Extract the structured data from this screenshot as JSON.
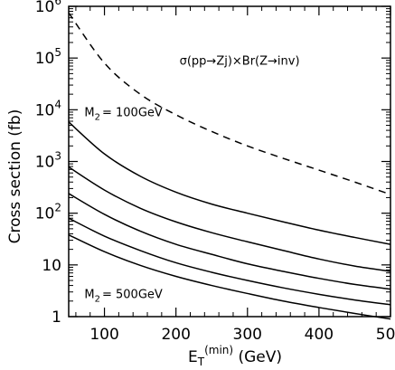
{
  "chart_data": {
    "type": "line",
    "title": "",
    "xlabel": {
      "main": "E",
      "sub": "T",
      "sup": "(min)",
      "unit": " (GeV)"
    },
    "ylabel": "Cross section (fb)",
    "xlim": [
      50,
      500
    ],
    "ylim": [
      1,
      1000000
    ],
    "yscale": "log",
    "grid": false,
    "legend": "none",
    "x_ticks": [
      100,
      200,
      300,
      400,
      500
    ],
    "x_tick_labels": [
      "100",
      "200",
      "300",
      "400",
      "500"
    ],
    "y_ticks": [
      1,
      10,
      100,
      1000,
      10000,
      100000,
      1000000
    ],
    "y_tick_labels": [
      {
        "text": "1"
      },
      {
        "text": "10"
      },
      {
        "base": "10",
        "exp": "2"
      },
      {
        "base": "10",
        "exp": "3"
      },
      {
        "base": "10",
        "exp": "4"
      },
      {
        "base": "10",
        "exp": "5"
      },
      {
        "base": "10",
        "exp": "6"
      }
    ],
    "series": [
      {
        "style": "dashed",
        "x": [
          50,
          100,
          150,
          200,
          250,
          300,
          350,
          400,
          450,
          500
        ],
        "values": [
          750000,
          80000,
          20000,
          8000,
          3800,
          2000,
          1150,
          680,
          400,
          230
        ]
      },
      {
        "style": "solid",
        "x": [
          50,
          100,
          150,
          200,
          250,
          300,
          350,
          400,
          450,
          500
        ],
        "values": [
          5800,
          1400,
          520,
          255,
          150,
          100,
          68,
          47,
          34,
          25
        ]
      },
      {
        "style": "solid",
        "x": [
          50,
          100,
          150,
          200,
          250,
          300,
          350,
          400,
          450,
          500
        ],
        "values": [
          780,
          280,
          125,
          68,
          42,
          28,
          19,
          13,
          9.5,
          7.5
        ]
      },
      {
        "style": "solid",
        "x": [
          50,
          100,
          150,
          200,
          250,
          300,
          350,
          400,
          450,
          500
        ],
        "values": [
          240,
          95,
          45,
          25,
          16,
          10.5,
          7.5,
          5.5,
          4.2,
          3.4
        ]
      },
      {
        "style": "solid",
        "x": [
          50,
          100,
          150,
          200,
          250,
          300,
          350,
          400,
          450,
          500
        ],
        "values": [
          80,
          36,
          19,
          11,
          7.2,
          5,
          3.6,
          2.7,
          2.1,
          1.7
        ]
      },
      {
        "style": "solid",
        "x": [
          50,
          100,
          150,
          200,
          250,
          300,
          350,
          400,
          450,
          500
        ],
        "values": [
          38,
          18,
          9.8,
          6,
          4,
          2.8,
          2,
          1.5,
          1.15,
          0.9
        ]
      }
    ],
    "annotations": [
      {
        "name": "annotation-sigma",
        "text": "σ(pp→Zj)×Br(Z→inv)",
        "x": 205,
        "y": 75000
      },
      {
        "name": "annotation-m2-100",
        "main": "M",
        "sub": "2",
        "rest": "= 100GeV",
        "x": 72,
        "y": 7500
      },
      {
        "name": "annotation-m2-500",
        "main": "M",
        "sub": "2",
        "rest": "= 500GeV",
        "x": 72,
        "y": 2.3
      }
    ]
  }
}
